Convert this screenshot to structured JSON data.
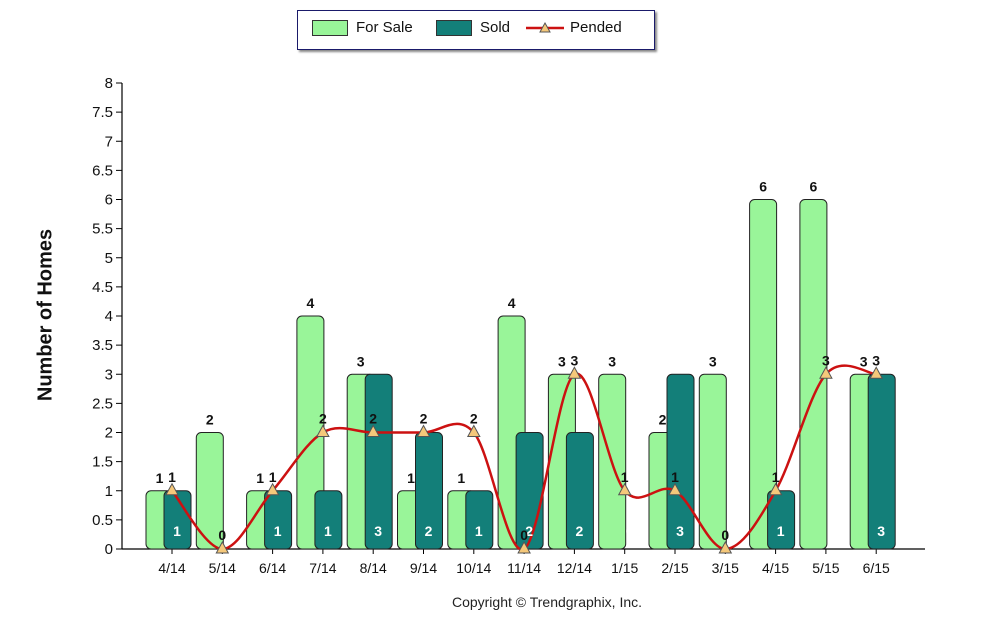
{
  "chart_data": {
    "type": "bar",
    "categories": [
      "4/14",
      "5/14",
      "6/14",
      "7/14",
      "8/14",
      "9/14",
      "10/14",
      "11/14",
      "12/14",
      "1/15",
      "2/15",
      "3/15",
      "4/15",
      "5/15",
      "6/15"
    ],
    "series": [
      {
        "name": "For Sale",
        "type": "bar",
        "color": "#99f599",
        "values": [
          1,
          2,
          1,
          4,
          3,
          1,
          1,
          4,
          3,
          3,
          2,
          3,
          6,
          6,
          3
        ]
      },
      {
        "name": "Sold",
        "type": "bar",
        "color": "#137f79",
        "values": [
          1,
          0,
          1,
          1,
          3,
          2,
          1,
          2,
          2,
          0,
          3,
          0,
          1,
          0,
          3
        ]
      },
      {
        "name": "Pended",
        "type": "line",
        "color": "#cc1111",
        "values": [
          1,
          0,
          1,
          2,
          2,
          2,
          2,
          0,
          3,
          1,
          1,
          0,
          1,
          3,
          3
        ]
      }
    ],
    "ylabel": "Number of Homes",
    "ylim": [
      0,
      8
    ],
    "yticks": [
      "0",
      "0.5",
      "1",
      "1.5",
      "2",
      "2.5",
      "3",
      "3.5",
      "4",
      "4.5",
      "5",
      "5.5",
      "6",
      "6.5",
      "7",
      "7.5",
      "8"
    ],
    "legend_position": "top-center"
  },
  "copyright": "Copyright © Trendgraphix, Inc."
}
